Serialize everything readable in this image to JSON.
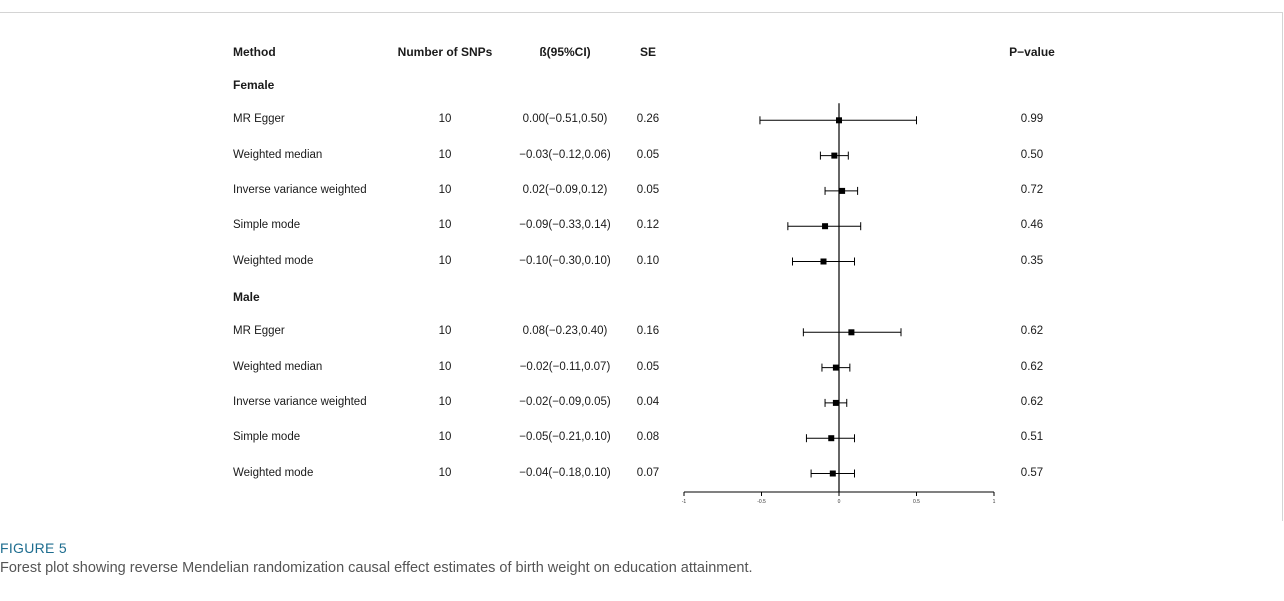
{
  "headers": {
    "method": "Method",
    "nsnp": "Number of SNPs",
    "beta": "ß(95%CI)",
    "se": "SE",
    "pval": "P−value"
  },
  "chart_data": {
    "type": "forest",
    "xlim": [
      -1,
      1
    ],
    "ticks": [
      -1,
      -0.5,
      0,
      0.5,
      1
    ],
    "tick_labels": [
      "-1",
      "-0.5",
      "0",
      "0.5",
      "1"
    ],
    "reference_line": 0,
    "groups": [
      {
        "name": "Female",
        "rows": [
          {
            "method": "MR Egger",
            "nsnp": "10",
            "beta_ci": "0.00(−0.51,0.50)",
            "se": "0.26",
            "p": "0.99",
            "est": 0.0,
            "lo": -0.51,
            "hi": 0.5
          },
          {
            "method": "Weighted median",
            "nsnp": "10",
            "beta_ci": "−0.03(−0.12,0.06)",
            "se": "0.05",
            "p": "0.50",
            "est": -0.03,
            "lo": -0.12,
            "hi": 0.06
          },
          {
            "method": "Inverse variance weighted",
            "nsnp": "10",
            "beta_ci": "0.02(−0.09,0.12)",
            "se": "0.05",
            "p": "0.72",
            "est": 0.02,
            "lo": -0.09,
            "hi": 0.12
          },
          {
            "method": "Simple mode",
            "nsnp": "10",
            "beta_ci": "−0.09(−0.33,0.14)",
            "se": "0.12",
            "p": "0.46",
            "est": -0.09,
            "lo": -0.33,
            "hi": 0.14
          },
          {
            "method": "Weighted mode",
            "nsnp": "10",
            "beta_ci": "−0.10(−0.30,0.10)",
            "se": "0.10",
            "p": "0.35",
            "est": -0.1,
            "lo": -0.3,
            "hi": 0.1
          }
        ]
      },
      {
        "name": "Male",
        "rows": [
          {
            "method": "MR Egger",
            "nsnp": "10",
            "beta_ci": "0.08(−0.23,0.40)",
            "se": "0.16",
            "p": "0.62",
            "est": 0.08,
            "lo": -0.23,
            "hi": 0.4
          },
          {
            "method": "Weighted median",
            "nsnp": "10",
            "beta_ci": "−0.02(−0.11,0.07)",
            "se": "0.05",
            "p": "0.62",
            "est": -0.02,
            "lo": -0.11,
            "hi": 0.07
          },
          {
            "method": "Inverse variance weighted",
            "nsnp": "10",
            "beta_ci": "−0.02(−0.09,0.05)",
            "se": "0.04",
            "p": "0.62",
            "est": -0.02,
            "lo": -0.09,
            "hi": 0.05
          },
          {
            "method": "Simple mode",
            "nsnp": "10",
            "beta_ci": "−0.05(−0.21,0.10)",
            "se": "0.08",
            "p": "0.51",
            "est": -0.05,
            "lo": -0.21,
            "hi": 0.1
          },
          {
            "method": "Weighted mode",
            "nsnp": "10",
            "beta_ci": "−0.04(−0.18,0.10)",
            "se": "0.07",
            "p": "0.57",
            "est": -0.04,
            "lo": -0.18,
            "hi": 0.1
          }
        ]
      }
    ]
  },
  "caption": {
    "label": "FIGURE 5",
    "text": "Forest plot showing reverse Mendelian randomization causal effect estimates of birth weight on education attainment."
  },
  "colors": {
    "ink": "#000000",
    "caption_label": "#1e6d8f",
    "caption_text": "#555555"
  }
}
